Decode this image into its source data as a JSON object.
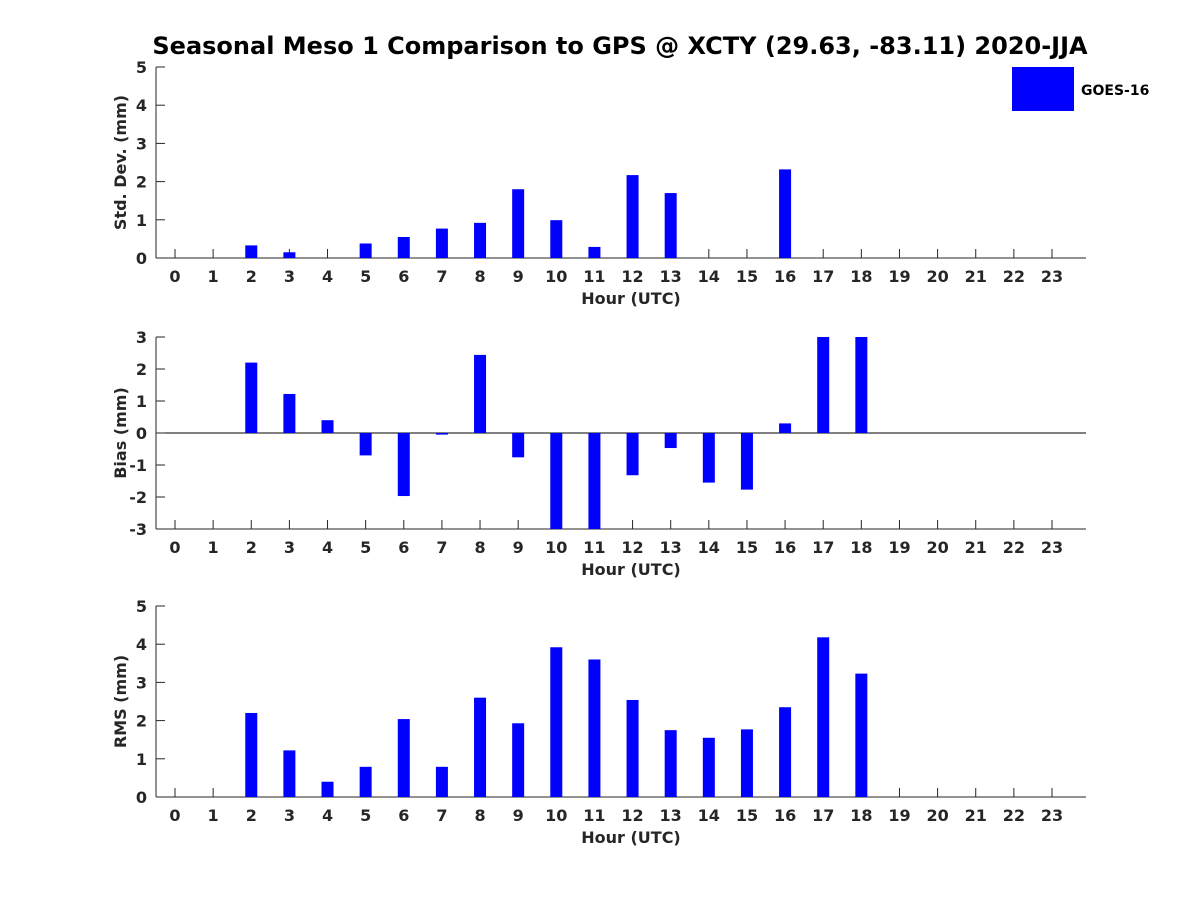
{
  "title": "Seasonal Meso 1 Comparison to GPS @ XCTY (29.63, -83.11) 2020-JJA",
  "legend": {
    "label": "GOES-16",
    "color": "#0000ff"
  },
  "chart_data": [
    {
      "type": "bar",
      "xlabel": "Hour (UTC)",
      "ylabel": "Std. Dev. (mm)",
      "categories": [
        "0",
        "1",
        "2",
        "3",
        "4",
        "5",
        "6",
        "7",
        "8",
        "9",
        "10",
        "11",
        "12",
        "13",
        "14",
        "15",
        "16",
        "17",
        "18",
        "19",
        "20",
        "21",
        "22",
        "23"
      ],
      "ylim": [
        0,
        5
      ],
      "yticks": [
        "0",
        "1",
        "2",
        "3",
        "4",
        "5"
      ],
      "series": [
        {
          "name": "GOES-16",
          "color": "#0000ff",
          "values": [
            null,
            null,
            0.33,
            0.15,
            null,
            0.38,
            0.55,
            0.77,
            0.92,
            1.8,
            0.99,
            0.29,
            2.17,
            1.7,
            null,
            null,
            2.32,
            null,
            null,
            null,
            null,
            null,
            null,
            null
          ]
        }
      ]
    },
    {
      "type": "bar",
      "xlabel": "Hour (UTC)",
      "ylabel": "Bias (mm)",
      "categories": [
        "0",
        "1",
        "2",
        "3",
        "4",
        "5",
        "6",
        "7",
        "8",
        "9",
        "10",
        "11",
        "12",
        "13",
        "14",
        "15",
        "16",
        "17",
        "18",
        "19",
        "20",
        "21",
        "22",
        "23"
      ],
      "ylim": [
        -3,
        3
      ],
      "yticks": [
        "-3",
        "-2",
        "-1",
        "0",
        "1",
        "2",
        "3"
      ],
      "zero_line": true,
      "series": [
        {
          "name": "GOES-16",
          "color": "#0000ff",
          "values": [
            null,
            null,
            2.2,
            1.22,
            0.4,
            -0.7,
            -1.97,
            -0.05,
            2.44,
            -0.76,
            -3.0,
            -3.0,
            -1.32,
            -0.47,
            -1.55,
            -1.77,
            0.3,
            3.0,
            3.0,
            null,
            null,
            null,
            null,
            null
          ]
        }
      ]
    },
    {
      "type": "bar",
      "xlabel": "Hour (UTC)",
      "ylabel": "RMS (mm)",
      "categories": [
        "0",
        "1",
        "2",
        "3",
        "4",
        "5",
        "6",
        "7",
        "8",
        "9",
        "10",
        "11",
        "12",
        "13",
        "14",
        "15",
        "16",
        "17",
        "18",
        "19",
        "20",
        "21",
        "22",
        "23"
      ],
      "ylim": [
        0,
        5
      ],
      "yticks": [
        "0",
        "1",
        "2",
        "3",
        "4",
        "5"
      ],
      "series": [
        {
          "name": "GOES-16",
          "color": "#0000ff",
          "values": [
            null,
            null,
            2.2,
            1.22,
            0.4,
            0.79,
            2.04,
            0.79,
            2.6,
            1.93,
            3.92,
            3.6,
            2.54,
            1.75,
            1.55,
            1.77,
            2.35,
            4.18,
            3.23,
            null,
            null,
            null,
            null,
            null
          ]
        }
      ]
    }
  ]
}
